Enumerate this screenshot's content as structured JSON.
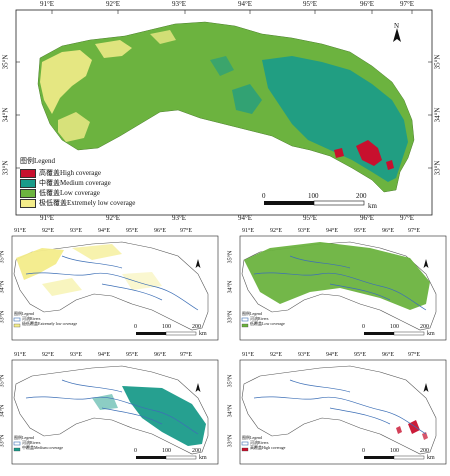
{
  "main_map": {
    "lon_ticks": [
      "91°E",
      "92°E",
      "93°E",
      "94°E",
      "95°E",
      "96°E",
      "97°E"
    ],
    "lat_ticks": [
      "35°N",
      "34°N",
      "33°N"
    ],
    "legend_title": "图例Legend",
    "legend_items": [
      {
        "label": "高覆盖High coverage",
        "color": "#c8102e"
      },
      {
        "label": "中覆盖Medium coverage",
        "color": "#1a9b8a"
      },
      {
        "label": "低覆盖Low coverage",
        "color": "#6cb33f"
      },
      {
        "label": "极低覆盖Extremely low coverage",
        "color": "#f3ec8a"
      }
    ],
    "scale_labels": [
      "0",
      "100",
      "200"
    ],
    "scale_unit": "km",
    "north_label": "N"
  },
  "small_maps": [
    {
      "legend_title": "图例Legend",
      "river_label": "河流Rivers",
      "class_label": "极低覆盖Extremely low coverage",
      "class_color": "#f3ec8a",
      "scale_labels": [
        "0",
        "100",
        "200"
      ],
      "scale_unit": "km"
    },
    {
      "legend_title": "图例Legend",
      "river_label": "河流Rivers",
      "class_label": "低覆盖Low coverage",
      "class_color": "#6cb33f",
      "scale_labels": [
        "0",
        "100",
        "200"
      ],
      "scale_unit": "km"
    },
    {
      "legend_title": "图例Legend",
      "river_label": "河流Rivers",
      "class_label": "中覆盖Medium coverage",
      "class_color": "#1a9b8a",
      "scale_labels": [
        "0",
        "100",
        "200"
      ],
      "scale_unit": "km"
    },
    {
      "legend_title": "图例Legend",
      "river_label": "河流Rivers",
      "class_label": "高覆盖High coverage",
      "class_color": "#c8102e",
      "scale_labels": [
        "0",
        "100",
        "200"
      ],
      "scale_unit": "km"
    }
  ],
  "colors": {
    "river": "#3d6fb6",
    "outline": "#555555"
  }
}
